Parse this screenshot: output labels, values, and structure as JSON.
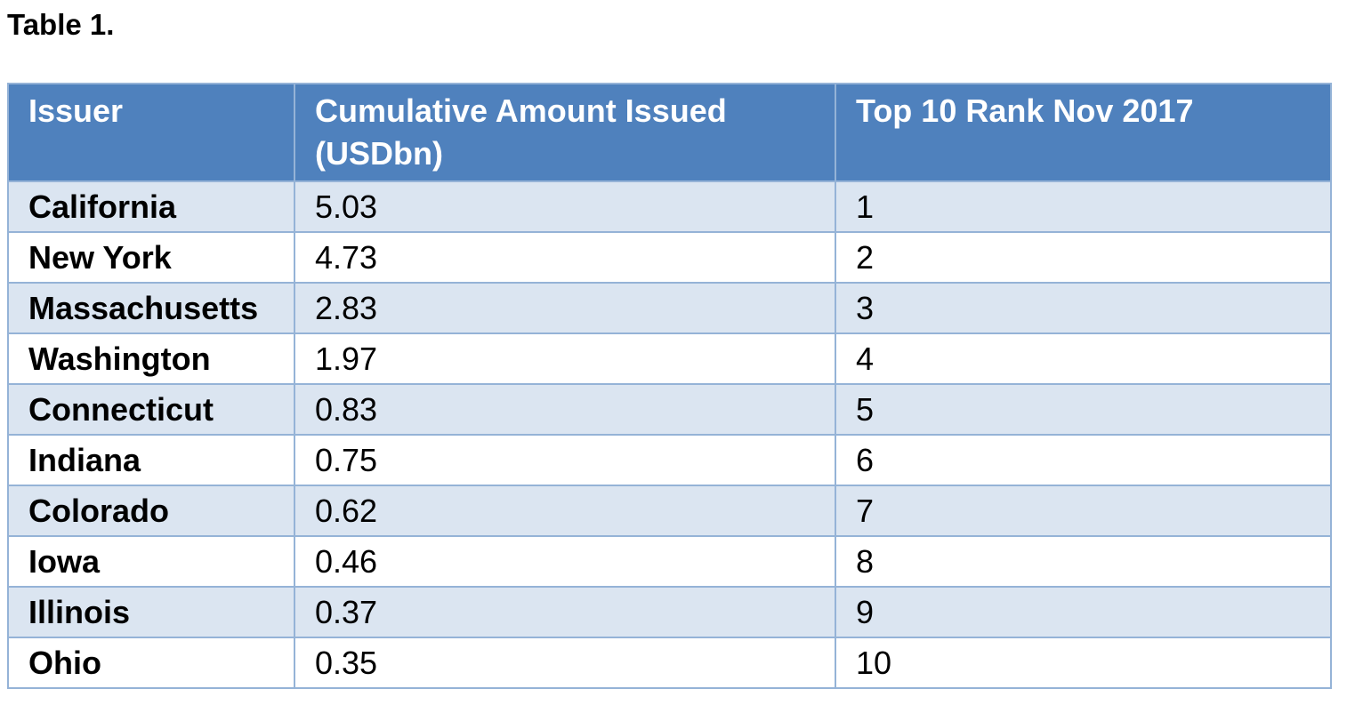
{
  "caption": "Table 1.",
  "table": {
    "headers": {
      "issuer": "Issuer",
      "amount": "Cumulative Amount Issued (USDbn)",
      "rank": "Top 10 Rank Nov 2017"
    },
    "rows": [
      {
        "issuer": "California",
        "amount": "5.03",
        "rank": "1"
      },
      {
        "issuer": "New York",
        "amount": "4.73",
        "rank": "2"
      },
      {
        "issuer": "Massachusetts",
        "amount": "2.83",
        "rank": "3"
      },
      {
        "issuer": "Washington",
        "amount": "1.97",
        "rank": "4"
      },
      {
        "issuer": "Connecticut",
        "amount": "0.83",
        "rank": "5"
      },
      {
        "issuer": "Indiana",
        "amount": "0.75",
        "rank": "6"
      },
      {
        "issuer": "Colorado",
        "amount": "0.62",
        "rank": "7"
      },
      {
        "issuer": "Iowa",
        "amount": "0.46",
        "rank": "8"
      },
      {
        "issuer": "Illinois",
        "amount": "0.37",
        "rank": "9"
      },
      {
        "issuer": "Ohio",
        "amount": "0.35",
        "rank": "10"
      }
    ]
  },
  "colors": {
    "header_background": "#4f81bd",
    "header_text": "#ffffff",
    "band_row": "#dbe5f1",
    "plain_row": "#ffffff",
    "border": "#95b3d7"
  }
}
